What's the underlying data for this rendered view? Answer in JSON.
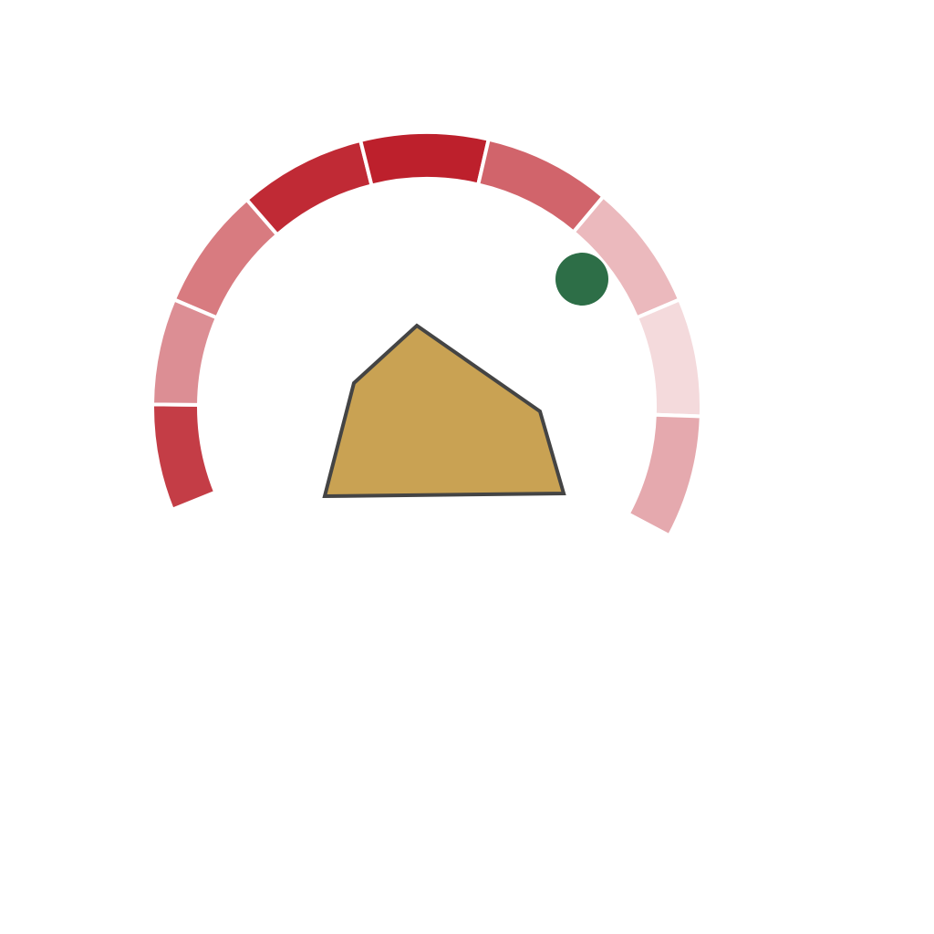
{
  "background": "#ffffff",
  "ring": {
    "segments": [
      {
        "color": "#c43d46"
      },
      {
        "color": "#dc8e94"
      },
      {
        "color": "#d87b80"
      },
      {
        "color": "#c02a35"
      },
      {
        "color": "#bd202c"
      },
      {
        "color": "#d1646b"
      },
      {
        "color": "#ebb9bd"
      },
      {
        "color": "#f4dadc"
      },
      {
        "color": "#e5a9ae"
      }
    ],
    "gap_color": "#ffffff"
  },
  "marker": {
    "shape": "circle",
    "color": "#2d6e47"
  },
  "polygon": {
    "shape": "pentagon",
    "fill": "#c9a253",
    "stroke": "#444444"
  }
}
